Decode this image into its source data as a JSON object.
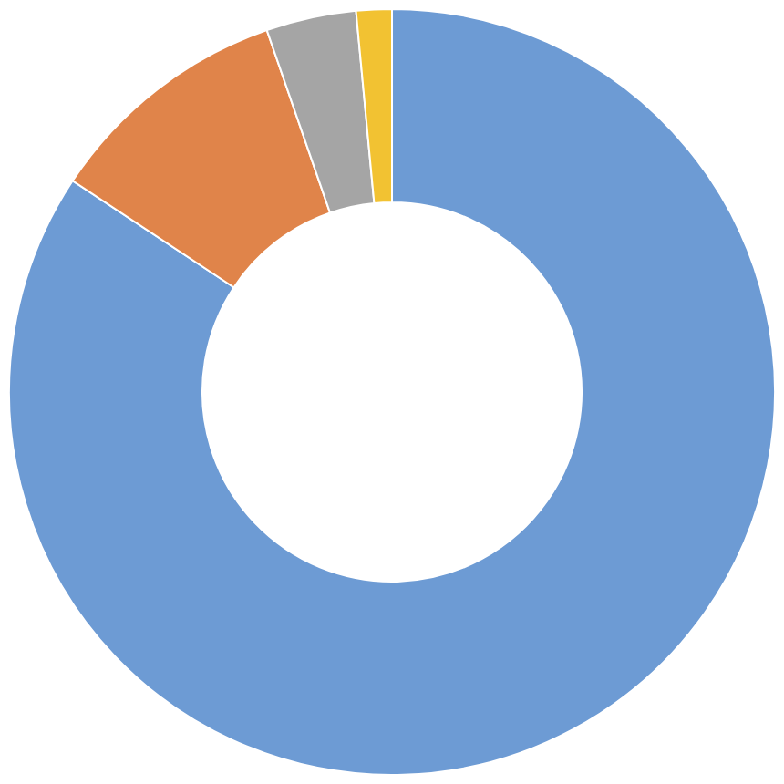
{
  "chart_data": {
    "type": "donut",
    "categories": [
      null,
      null,
      null,
      null
    ],
    "values": [
      84.3,
      10.4,
      3.8,
      1.5
    ],
    "colors": [
      "#6d9bd4",
      "#e0844a",
      "#a5a5a5",
      "#f2c232"
    ]
  }
}
